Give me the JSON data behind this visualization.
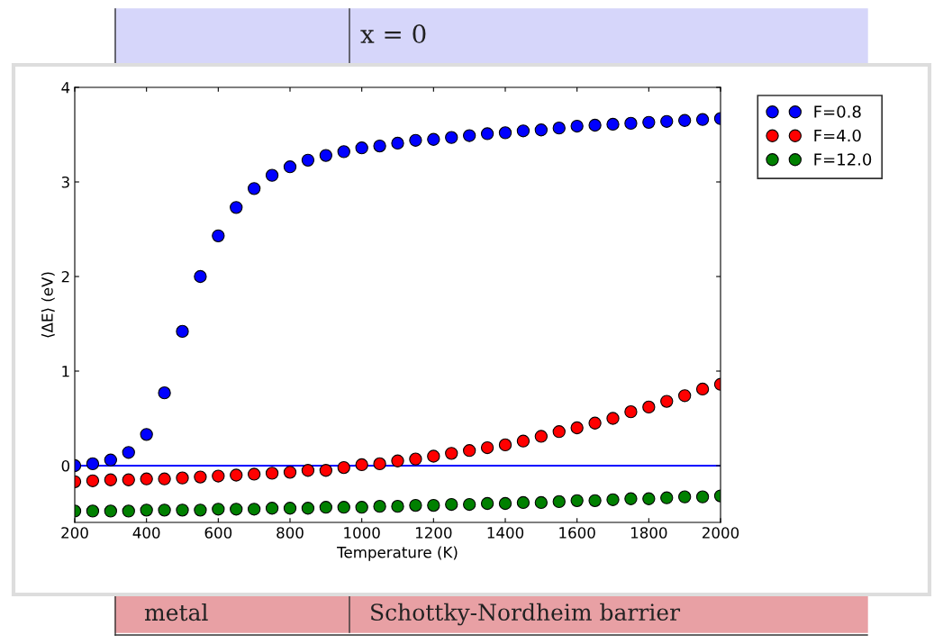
{
  "chart_data": {
    "type": "scatter",
    "xlabel": "Temperature (K)",
    "ylabel": "⟨ΔE⟩ (eV)",
    "x": [
      200,
      250,
      300,
      350,
      400,
      450,
      500,
      550,
      600,
      650,
      700,
      750,
      800,
      850,
      900,
      950,
      1000,
      1050,
      1100,
      1150,
      1200,
      1250,
      1300,
      1350,
      1400,
      1450,
      1500,
      1550,
      1600,
      1650,
      1700,
      1750,
      1800,
      1850,
      1900,
      1950,
      2000
    ],
    "series": [
      {
        "name": "F=0.8",
        "color": "#0000ff",
        "values": [
          0,
          0.02,
          0.06,
          0.14,
          0.33,
          0.77,
          1.42,
          2.0,
          2.43,
          2.73,
          2.93,
          3.07,
          3.16,
          3.23,
          3.28,
          3.32,
          3.36,
          3.38,
          3.41,
          3.44,
          3.45,
          3.47,
          3.49,
          3.51,
          3.52,
          3.54,
          3.55,
          3.57,
          3.59,
          3.6,
          3.61,
          3.62,
          3.63,
          3.64,
          3.65,
          3.66,
          3.67
        ]
      },
      {
        "name": "F=4.0",
        "color": "#ff0000",
        "values": [
          -0.17,
          -0.16,
          -0.15,
          -0.15,
          -0.14,
          -0.14,
          -0.13,
          -0.12,
          -0.11,
          -0.1,
          -0.09,
          -0.08,
          -0.07,
          -0.05,
          -0.05,
          -0.02,
          0.01,
          0.02,
          0.05,
          0.07,
          0.1,
          0.13,
          0.16,
          0.19,
          0.22,
          0.26,
          0.31,
          0.36,
          0.4,
          0.45,
          0.5,
          0.57,
          0.62,
          0.68,
          0.74,
          0.81,
          0.86
        ]
      },
      {
        "name": "F=12.0",
        "color": "#008000",
        "values": [
          -0.48,
          -0.48,
          -0.48,
          -0.48,
          -0.47,
          -0.47,
          -0.47,
          -0.47,
          -0.46,
          -0.46,
          -0.46,
          -0.45,
          -0.45,
          -0.45,
          -0.44,
          -0.44,
          -0.44,
          -0.43,
          -0.43,
          -0.42,
          -0.42,
          -0.41,
          -0.41,
          -0.4,
          -0.4,
          -0.39,
          -0.39,
          -0.38,
          -0.37,
          -0.37,
          -0.36,
          -0.35,
          -0.35,
          -0.34,
          -0.33,
          -0.33,
          -0.32
        ]
      }
    ],
    "xlim": [
      200,
      2000
    ],
    "xticks": [
      200,
      400,
      600,
      800,
      1000,
      1200,
      1400,
      1600,
      1800,
      2000
    ],
    "ylim": [
      -0.6,
      4
    ],
    "yticks": [
      0,
      1,
      2,
      3,
      4
    ],
    "ref_lines": [
      {
        "axis": "y",
        "value": 0,
        "color": "#0000ff",
        "line_style": "solid"
      }
    ],
    "marker": "circle",
    "line_style": "none",
    "grid": false,
    "legend": "top right",
    "annotations": [
      "x = 0",
      "metal",
      "Schottky-Nordheim barrier"
    ]
  }
}
